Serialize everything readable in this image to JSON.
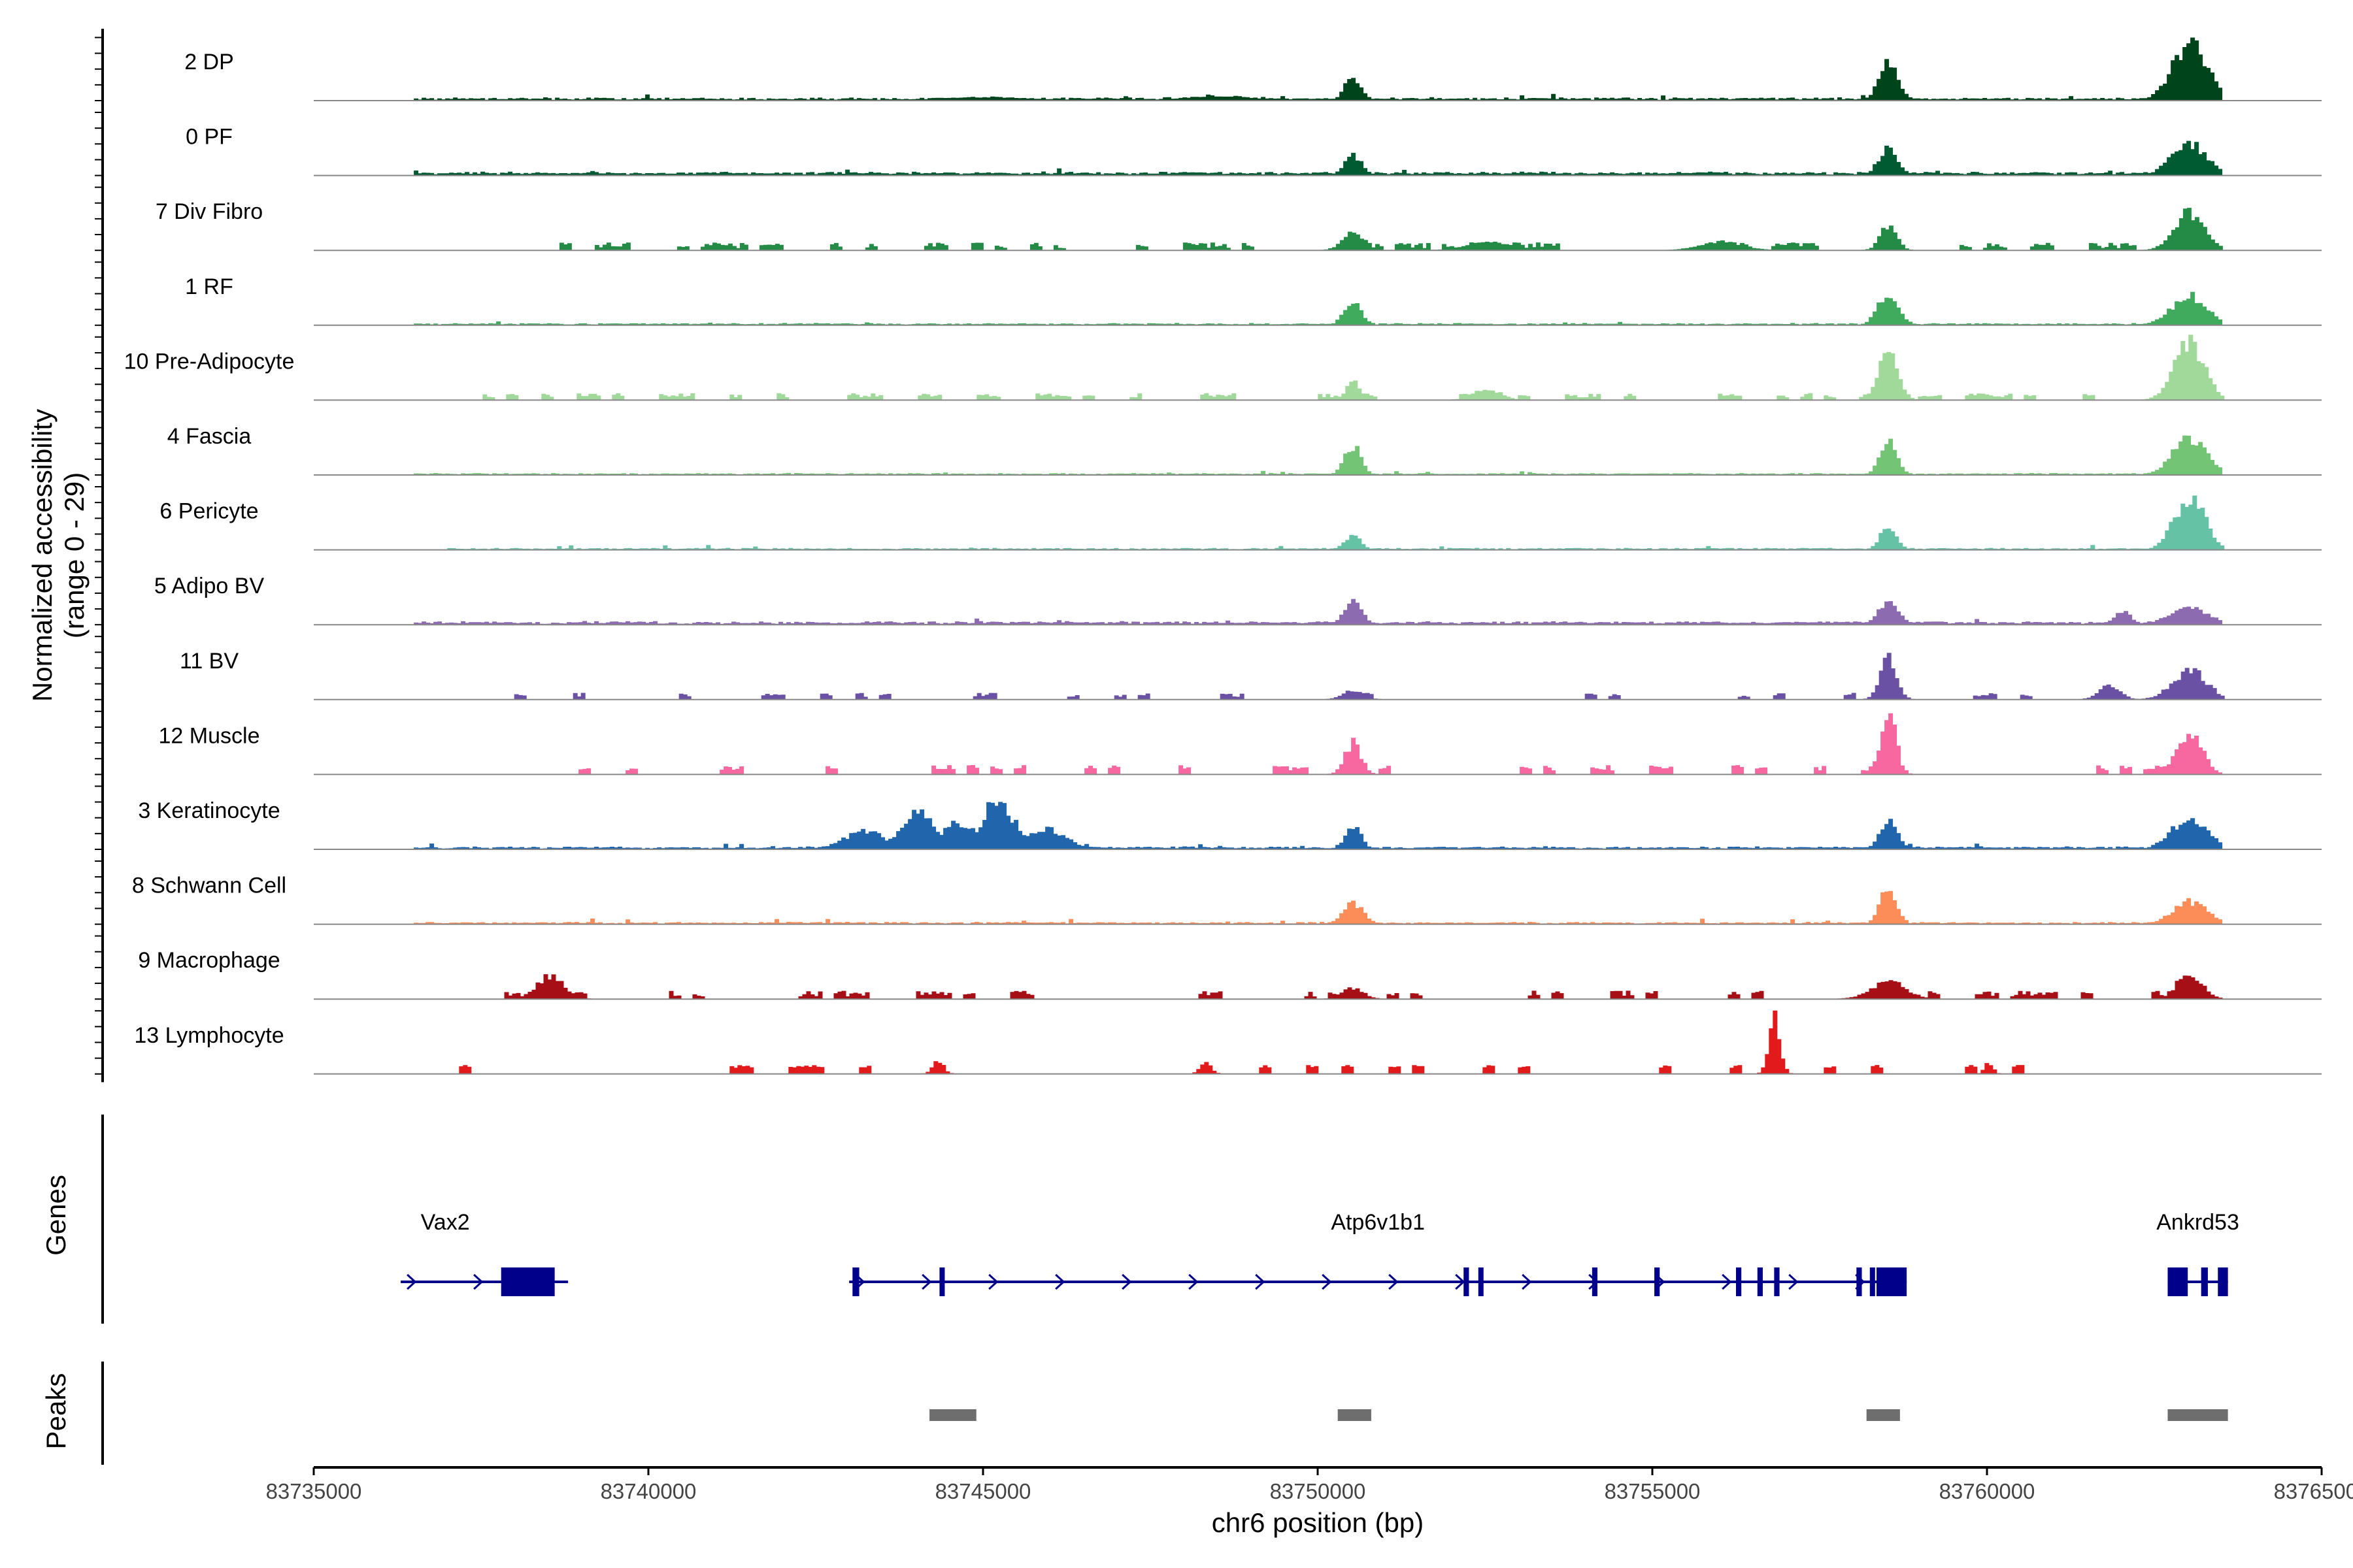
{
  "chart_data": {
    "type": "area",
    "title": "",
    "ylabel_line1": "Normalized accessibility",
    "ylabel_line2": "(range 0 - 29)",
    "ylim": [
      0,
      29
    ],
    "xlabel": "chr6 position (bp)",
    "xlim": [
      83735000,
      83765000
    ],
    "xticks": [
      83735000,
      83740000,
      83745000,
      83750000,
      83755000,
      83760000,
      83765000
    ],
    "xtick_labels": [
      "83735000",
      "83740000",
      "83745000",
      "83750000",
      "83755000",
      "83760000",
      "83765000"
    ],
    "genes_label": "Genes",
    "peaks_label": "Peaks",
    "tracks": [
      {
        "name": "2 DP",
        "color": "#00441b",
        "style": "cont",
        "start": 83736500,
        "end": 83763500,
        "base": 0.5,
        "noise": 1.2,
        "peaks": [
          [
            83750500,
            11,
            120
          ],
          [
            83758500,
            17,
            140
          ],
          [
            83763000,
            25,
            260
          ],
          [
            83745000,
            1.5,
            600
          ],
          [
            83748500,
            2,
            500
          ]
        ]
      },
      {
        "name": "0 PF",
        "color": "#005a32",
        "style": "cont",
        "start": 83736500,
        "end": 83763500,
        "base": 0.8,
        "noise": 1.0,
        "peaks": [
          [
            83750500,
            9,
            120
          ],
          [
            83758500,
            13,
            140
          ],
          [
            83763000,
            14,
            260
          ]
        ]
      },
      {
        "name": "7 Div Fibro",
        "color": "#238b45",
        "style": "sparse",
        "start": 83738500,
        "end": 83763500,
        "base": 0.8,
        "noise": 2.0,
        "density": 0.48,
        "peaks": [
          [
            83750500,
            9,
            150
          ],
          [
            83758500,
            11,
            120
          ],
          [
            83763000,
            17,
            220
          ],
          [
            83752500,
            4,
            300
          ],
          [
            83756000,
            4,
            300
          ]
        ]
      },
      {
        "name": "1 RF",
        "color": "#41ab5d",
        "style": "cont",
        "start": 83736500,
        "end": 83763500,
        "base": 0.4,
        "noise": 0.6,
        "peaks": [
          [
            83750500,
            10,
            130
          ],
          [
            83758500,
            14,
            150
          ],
          [
            83763000,
            13,
            260
          ]
        ]
      },
      {
        "name": "10 Pre-Adipocyte",
        "color": "#a1d99b",
        "style": "sparse",
        "start": 83737000,
        "end": 83763500,
        "base": 1.0,
        "noise": 1.5,
        "density": 0.32,
        "peaks": [
          [
            83750500,
            8,
            100
          ],
          [
            83758500,
            21,
            140
          ],
          [
            83763000,
            26,
            220
          ],
          [
            83752500,
            5,
            200
          ]
        ]
      },
      {
        "name": "4 Fascia",
        "color": "#74c476",
        "style": "cont",
        "start": 83736500,
        "end": 83763500,
        "base": 0.3,
        "noise": 0.7,
        "peaks": [
          [
            83750500,
            13,
            120
          ],
          [
            83758500,
            17,
            120
          ],
          [
            83763000,
            17,
            240
          ]
        ]
      },
      {
        "name": "6 Pericyte",
        "color": "#66c2a4",
        "style": "cont",
        "start": 83737000,
        "end": 83763500,
        "base": 0.2,
        "noise": 0.9,
        "peaks": [
          [
            83750500,
            6,
            120
          ],
          [
            83758500,
            10,
            120
          ],
          [
            83763000,
            24,
            220
          ]
        ]
      },
      {
        "name": "5 Adipo BV",
        "color": "#8c6bb1",
        "style": "cont",
        "start": 83736500,
        "end": 83763500,
        "base": 0.6,
        "noise": 1.3,
        "peaks": [
          [
            83750500,
            12,
            120
          ],
          [
            83758500,
            10,
            150
          ],
          [
            83763000,
            8,
            280
          ],
          [
            83762000,
            6,
            120
          ]
        ]
      },
      {
        "name": "11 BV",
        "color": "#6a51a3",
        "style": "sparse",
        "start": 83738000,
        "end": 83763500,
        "base": 1.0,
        "noise": 1.5,
        "density": 0.18,
        "peaks": [
          [
            83758500,
            18,
            120
          ],
          [
            83763000,
            13,
            250
          ],
          [
            83750500,
            4,
            150
          ],
          [
            83761800,
            7,
            150
          ]
        ]
      },
      {
        "name": "12 Muscle",
        "color": "#f768a1",
        "style": "sparse",
        "start": 83736500,
        "end": 83763500,
        "base": 1.5,
        "noise": 2.0,
        "density": 0.25,
        "peaks": [
          [
            83758500,
            28,
            110
          ],
          [
            83750500,
            14,
            120
          ],
          [
            83763000,
            19,
            180
          ]
        ]
      },
      {
        "name": "3 Keratinocyte",
        "color": "#2166ac",
        "style": "cont",
        "start": 83736500,
        "end": 83763500,
        "base": 0.5,
        "noise": 1.0,
        "peaks": [
          [
            83743200,
            8,
            300
          ],
          [
            83744000,
            18,
            250
          ],
          [
            83744600,
            12,
            260
          ],
          [
            83745200,
            22,
            230
          ],
          [
            83745900,
            9,
            300
          ],
          [
            83750500,
            10,
            120
          ],
          [
            83758500,
            12,
            130
          ],
          [
            83763000,
            14,
            260
          ]
        ]
      },
      {
        "name": "8 Schwann Cell",
        "color": "#fc8d59",
        "style": "cont",
        "start": 83736500,
        "end": 83763500,
        "base": 0.3,
        "noise": 1.0,
        "peaks": [
          [
            83758500,
            17,
            120
          ],
          [
            83750500,
            9,
            150
          ],
          [
            83763000,
            10,
            250
          ]
        ]
      },
      {
        "name": "9 Macrophage",
        "color": "#a50f15",
        "style": "sparse",
        "start": 83737500,
        "end": 83763500,
        "base": 1.0,
        "noise": 2.0,
        "density": 0.3,
        "peaks": [
          [
            83738500,
            10,
            200
          ],
          [
            83758500,
            8,
            250
          ],
          [
            83763000,
            12,
            180
          ],
          [
            83750500,
            5,
            150
          ]
        ]
      },
      {
        "name": "13 Lymphocyte",
        "color": "#e31a1c",
        "style": "sparse",
        "start": 83737000,
        "end": 83762500,
        "base": 2.5,
        "noise": 1.0,
        "density": 0.12,
        "peaks": [
          [
            83756800,
            26,
            80
          ],
          [
            83744300,
            6,
            80
          ],
          [
            83748300,
            5,
            80
          ],
          [
            83760000,
            5,
            60
          ]
        ]
      }
    ],
    "genes": [
      {
        "name": "Vax2",
        "start": 83736300,
        "end": 83738800,
        "exons": [
          [
            83737800,
            83738600
          ]
        ]
      },
      {
        "name": "Atp6v1b1",
        "start": 83743000,
        "end": 83758800,
        "exons": [
          [
            83743050,
            83743150
          ],
          [
            83744350,
            83744420
          ],
          [
            83752180,
            83752260
          ],
          [
            83752400,
            83752470
          ],
          [
            83754100,
            83754180
          ],
          [
            83755030,
            83755110
          ],
          [
            83756250,
            83756330
          ],
          [
            83756570,
            83756650
          ],
          [
            83756820,
            83756900
          ],
          [
            83758050,
            83758130
          ],
          [
            83758250,
            83758300
          ],
          [
            83758350,
            83758800
          ]
        ]
      },
      {
        "name": "Ankrd53",
        "start": 83762700,
        "end": 83763600,
        "exons": [
          [
            83762700,
            83763000
          ],
          [
            83763200,
            83763300
          ],
          [
            83763450,
            83763600
          ]
        ]
      }
    ],
    "peak_regions": [
      [
        83744200,
        83744900
      ],
      [
        83750300,
        83750800
      ],
      [
        83758200,
        83758700
      ],
      [
        83762700,
        83763600
      ]
    ]
  }
}
